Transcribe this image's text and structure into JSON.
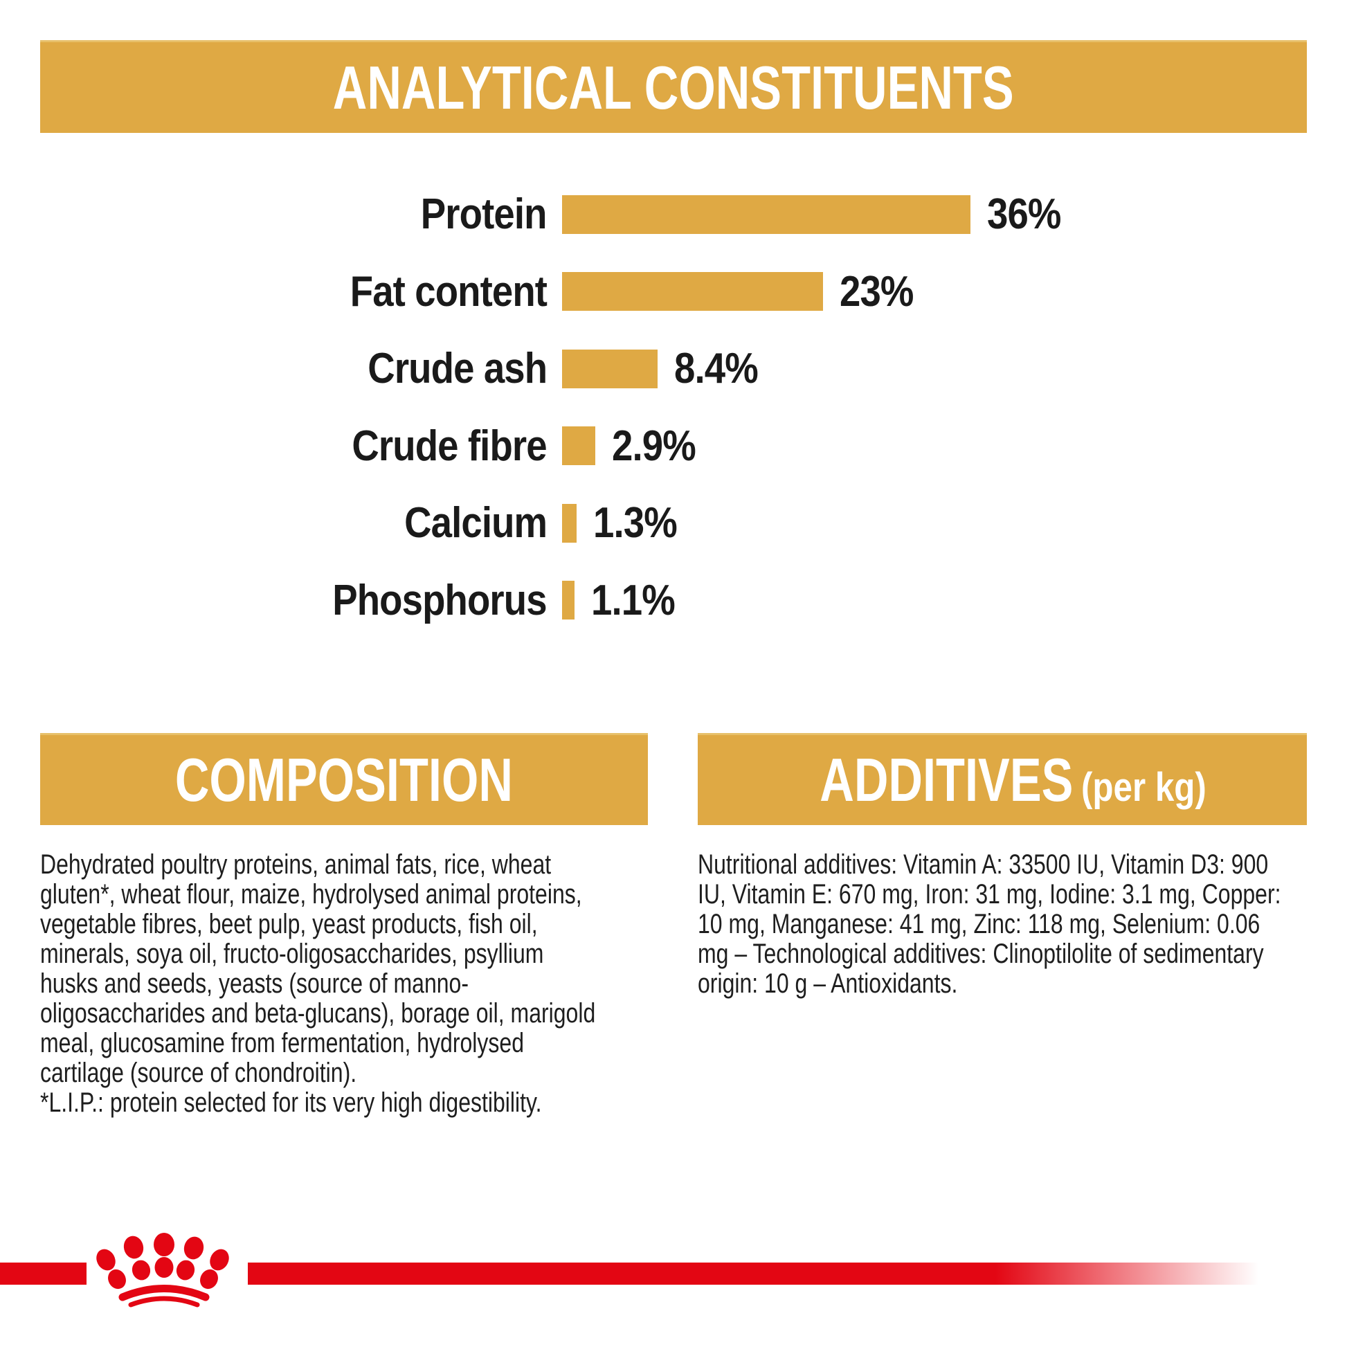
{
  "colors": {
    "gold": "#DFA944",
    "gold_edge_light": "#E7C06A",
    "brand_red": "#E30613",
    "text_dark": "#1A1A1A",
    "banner_text": "#FFFFFF",
    "background": "#FFFFFF"
  },
  "analytical": {
    "title": "ANALYTICAL CONSTITUENTS"
  },
  "chart_data": {
    "type": "bar",
    "orientation": "horizontal",
    "title": "ANALYTICAL CONSTITUENTS",
    "categories": [
      "Protein",
      "Fat content",
      "Crude ash",
      "Crude fibre",
      "Calcium",
      "Phosphorus"
    ],
    "values": [
      36,
      23,
      8.4,
      2.9,
      1.3,
      1.1
    ],
    "value_labels": [
      "36%",
      "23%",
      "8.4%",
      "2.9%",
      "1.3%",
      "1.1%"
    ],
    "unit": "%",
    "xlim": [
      0,
      36
    ],
    "grid": false,
    "legend": false,
    "bar_color": "#DFA944",
    "label_side": "left",
    "value_side": "right-of-bar"
  },
  "composition": {
    "title": "COMPOSITION",
    "body_lines": [
      "Dehydrated poultry proteins, animal fats, rice, wheat",
      "gluten*, wheat flour, maize, hydrolysed animal proteins,",
      "vegetable fibres, beet pulp, yeast products, fish oil,",
      "minerals, soya oil, fructo-oligosaccharides, psyllium",
      "husks and seeds, yeasts (source of manno-",
      "oligosaccharides and beta-glucans), borage oil, marigold",
      "meal, glucosamine from fermentation, hydrolysed",
      "cartilage (source of chondroitin).",
      "*L.I.P.: protein selected for its very high digestibility."
    ]
  },
  "additives": {
    "title": "ADDITIVES",
    "title_suffix": "(per kg)",
    "body_lines": [
      "Nutritional additives: Vitamin A: 33500 IU, Vitamin D3: 900",
      "IU, Vitamin E: 670 mg, Iron: 31 mg, Iodine: 3.1 mg, Copper:",
      "10 mg, Manganese: 41 mg, Zinc: 118 mg, Selenium: 0.06",
      "mg – Technological additives: Clinoptilolite of sedimentary",
      "origin: 10 g – Antioxidants."
    ]
  },
  "footer": {
    "logo": "royal-canin-crown"
  }
}
